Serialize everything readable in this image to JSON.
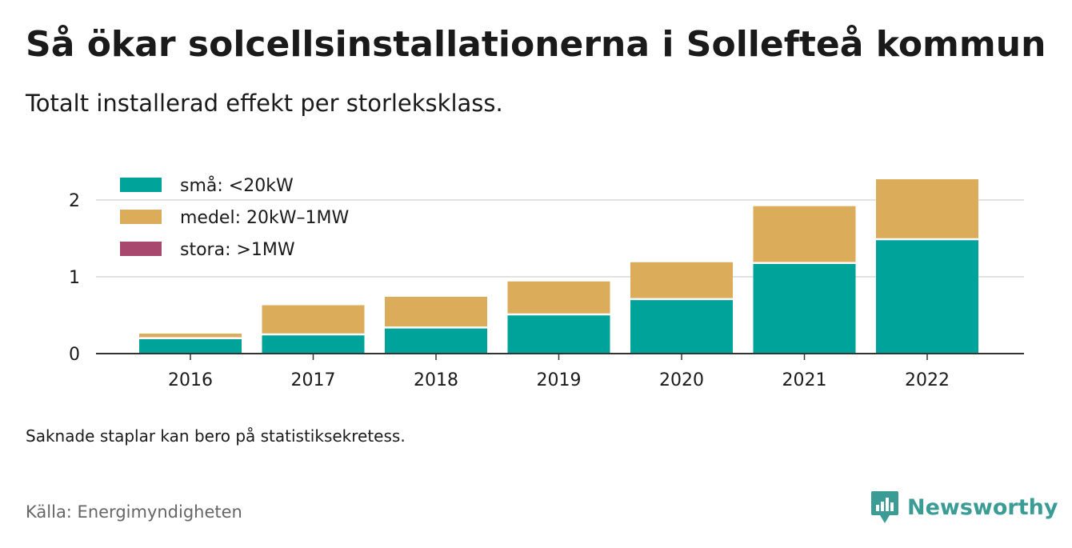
{
  "title": "Så ökar solcellsinstallationerna i Sollefteå kommun",
  "subtitle": "Totalt installerad effekt per storleksklass.",
  "note": "Saknade staplar kan bero på statistiksekretess.",
  "source": "Källa: Energimyndigheten",
  "brand": {
    "name": "Newsworthy",
    "icon": "newsworthy-logo-icon",
    "color": "#3a9c95"
  },
  "chart_data": {
    "type": "bar",
    "stacked": true,
    "categories": [
      "2016",
      "2017",
      "2018",
      "2019",
      "2020",
      "2021",
      "2022"
    ],
    "series": [
      {
        "name": "små: <20kW",
        "color": "#00a39a",
        "values": [
          0.2,
          0.25,
          0.34,
          0.51,
          0.71,
          1.18,
          1.49
        ]
      },
      {
        "name": "medel: 20kW–1MW",
        "color": "#dbad5b",
        "values": [
          0.06,
          0.38,
          0.4,
          0.43,
          0.48,
          0.74,
          0.78
        ]
      },
      {
        "name": "stora: >1MW",
        "color": "#a8486e",
        "values": [
          0,
          0,
          0,
          0,
          0,
          0,
          0
        ]
      }
    ],
    "yticks": [
      0,
      1,
      2
    ],
    "ylim": [
      0,
      2.3
    ],
    "grid": true,
    "legend_position": "top-left"
  }
}
